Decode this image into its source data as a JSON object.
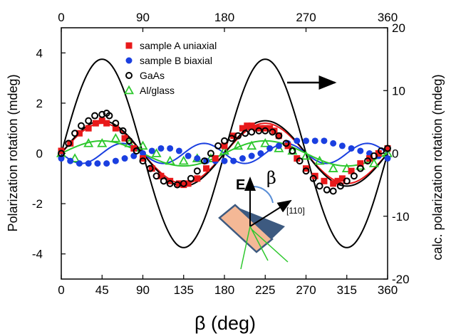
{
  "chart_data": {
    "type": "scatter",
    "xlabel": "β (deg)",
    "ylabel": "Polarization rotation (mdeg)",
    "y2label": "calc. polarization rotation (mdeg)",
    "xlim": [
      0,
      360
    ],
    "ylim": [
      -5,
      5
    ],
    "y2lim": [
      -20,
      20
    ],
    "xticks": [
      0,
      45,
      90,
      135,
      180,
      225,
      270,
      315,
      360
    ],
    "xticks_top": [
      0,
      90,
      180,
      270,
      360
    ],
    "yticks": [
      -4,
      -2,
      0,
      2,
      4
    ],
    "y2ticks": [
      -20,
      -10,
      0,
      10,
      20
    ],
    "legend_position": "top-center",
    "series": [
      {
        "name": "sample A uniaxial",
        "marker": "square",
        "color": "#e8191a",
        "x": [
          0,
          10,
          20,
          30,
          38,
          45,
          50,
          60,
          70,
          80,
          90,
          100,
          110,
          120,
          130,
          135,
          140,
          150,
          160,
          170,
          180,
          190,
          200,
          205,
          210,
          215,
          220,
          225,
          230,
          235,
          240,
          250,
          260,
          270,
          280,
          290,
          300,
          305,
          310,
          320,
          330,
          340,
          350,
          360
        ],
        "y": [
          0.1,
          0.4,
          0.8,
          1.0,
          1.2,
          1.3,
          1.2,
          1.0,
          0.6,
          0.2,
          -0.2,
          -0.6,
          -0.9,
          -1.1,
          -1.2,
          -1.25,
          -1.2,
          -1.0,
          -0.6,
          -0.2,
          0.3,
          0.7,
          1.0,
          1.1,
          1.1,
          1.0,
          1.0,
          1.0,
          1.0,
          0.9,
          0.7,
          0.3,
          -0.2,
          -0.6,
          -0.9,
          -1.1,
          -1.2,
          -1.1,
          -1.0,
          -0.7,
          -0.4,
          -0.2,
          0.0,
          0.2
        ]
      },
      {
        "name": "sample B biaxial",
        "marker": "circle-filled",
        "color": "#1a3fe0",
        "x": [
          0,
          10,
          20,
          30,
          40,
          50,
          60,
          70,
          80,
          90,
          100,
          110,
          120,
          130,
          140,
          150,
          160,
          170,
          180,
          190,
          200,
          210,
          220,
          230,
          240,
          250,
          260,
          270,
          280,
          290,
          300,
          310,
          320,
          330,
          340,
          350,
          360
        ],
        "y": [
          -0.2,
          -0.3,
          -0.4,
          -0.4,
          -0.4,
          -0.4,
          -0.3,
          -0.2,
          -0.1,
          0.0,
          0.1,
          0.2,
          0.2,
          0.1,
          -0.1,
          -0.2,
          -0.3,
          -0.3,
          -0.3,
          -0.3,
          -0.2,
          -0.1,
          0.0,
          0.2,
          0.3,
          0.4,
          0.5,
          0.5,
          0.5,
          0.5,
          0.4,
          0.3,
          0.2,
          0.1,
          0.0,
          -0.1,
          -0.2
        ]
      },
      {
        "name": "GaAs",
        "marker": "circle-open",
        "color": "#000000",
        "x": [
          0,
          8,
          15,
          22,
          30,
          37,
          45,
          50,
          53,
          60,
          68,
          75,
          83,
          90,
          98,
          105,
          113,
          120,
          128,
          135,
          143,
          150,
          158,
          165,
          173,
          180,
          188,
          195,
          203,
          210,
          218,
          225,
          233,
          240,
          248,
          255,
          263,
          270,
          278,
          285,
          293,
          300,
          308,
          315,
          323,
          330,
          338,
          345,
          353,
          360
        ],
        "y": [
          0.0,
          0.4,
          0.8,
          1.1,
          1.3,
          1.5,
          1.55,
          1.6,
          1.5,
          1.2,
          0.9,
          0.5,
          0.1,
          -0.3,
          -0.6,
          -0.9,
          -1.1,
          -1.2,
          -1.25,
          -1.2,
          -1.0,
          -0.7,
          -0.3,
          0.0,
          0.3,
          0.5,
          0.6,
          0.7,
          0.8,
          0.85,
          0.9,
          0.9,
          0.85,
          0.7,
          0.4,
          0.1,
          -0.3,
          -0.7,
          -1.0,
          -1.3,
          -1.45,
          -1.5,
          -1.3,
          -1.1,
          -0.9,
          -0.6,
          -0.3,
          -0.1,
          0.1,
          0.2
        ]
      },
      {
        "name": "Al/glass",
        "marker": "triangle-open",
        "color": "#2ec82e",
        "x": [
          0,
          15,
          30,
          45,
          60,
          75,
          90,
          105,
          120,
          135,
          150,
          165,
          180,
          195,
          210,
          225,
          240,
          255,
          270,
          285,
          300,
          315,
          330,
          345,
          360
        ],
        "y": [
          0.0,
          -0.2,
          0.4,
          0.4,
          0.6,
          0.4,
          0.3,
          0.0,
          -0.3,
          -0.3,
          -0.2,
          -0.2,
          0.1,
          0.3,
          0.3,
          0.4,
          0.2,
          0.1,
          -0.1,
          -0.3,
          -0.6,
          -0.6,
          -0.5,
          -0.4,
          0.0
        ]
      }
    ],
    "fit_lines": [
      {
        "for": "sample A uniaxial",
        "color": "#e8191a",
        "form": "A*sin(2x)",
        "amplitude": 1.2,
        "offset": 0.0
      },
      {
        "for": "sample B biaxial",
        "color": "#1a3fe0",
        "form": "A*sin(4x)",
        "amplitude": -0.4,
        "offset": 0.0
      },
      {
        "for": "GaAs",
        "color": "#000000",
        "form": "A*sin(2x)",
        "amplitude": 1.3,
        "offset": 0.0
      },
      {
        "for": "Al/glass",
        "color": "#2ec82e",
        "form": "A*sin(2x)",
        "amplitude": 0.5,
        "offset": 0.0
      }
    ],
    "calc_curve": {
      "axis": "right",
      "color": "#000000",
      "form": "A*sin(2x)",
      "amplitude": 15
    },
    "annotations": {
      "arrow_right_axis": true,
      "inset": {
        "field_label": "E",
        "angle_label": "β",
        "direction_label": "[110]"
      }
    }
  }
}
